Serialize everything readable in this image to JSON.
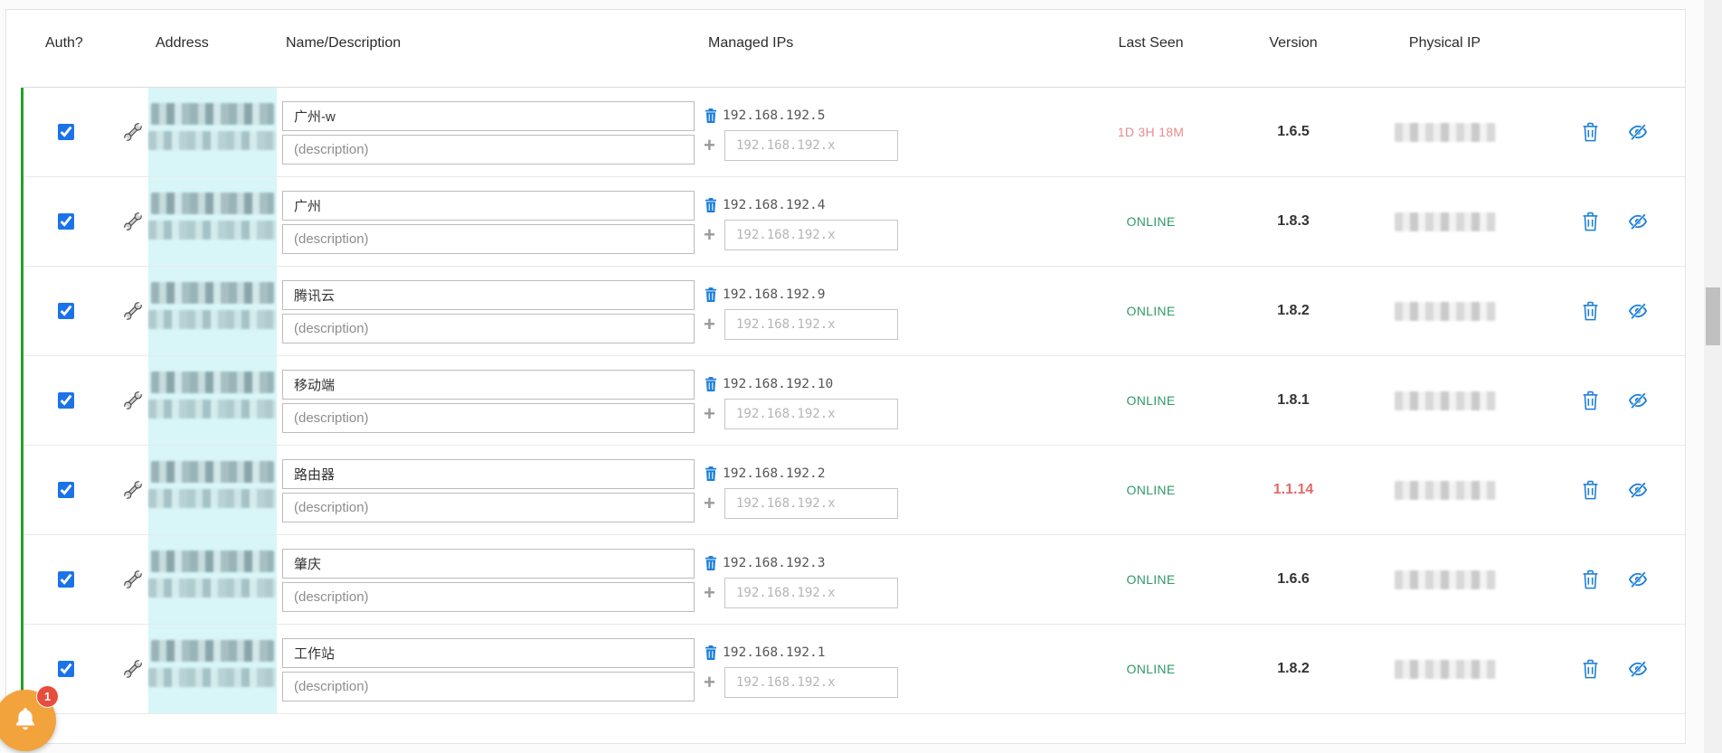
{
  "table": {
    "columns": [
      "Auth?",
      "Address",
      "Name/Description",
      "Managed IPs",
      "Last Seen",
      "Version",
      "Physical IP"
    ]
  },
  "inputs": {
    "description_placeholder": "(description)",
    "ip_placeholder": "192.168.192.x"
  },
  "members": [
    {
      "authorized": true,
      "name": "广州-w",
      "managed_ip": "192.168.192.5",
      "last_seen": "1D 3H 18M",
      "status": "offline",
      "version": "1.6.5",
      "version_alert": false
    },
    {
      "authorized": true,
      "name": "广州",
      "managed_ip": "192.168.192.4",
      "last_seen": "ONLINE",
      "status": "online",
      "version": "1.8.3",
      "version_alert": false
    },
    {
      "authorized": true,
      "name": "腾讯云",
      "managed_ip": "192.168.192.9",
      "last_seen": "ONLINE",
      "status": "online",
      "version": "1.8.2",
      "version_alert": false
    },
    {
      "authorized": true,
      "name": "移动端",
      "managed_ip": "192.168.192.10",
      "last_seen": "ONLINE",
      "status": "online",
      "version": "1.8.1",
      "version_alert": false
    },
    {
      "authorized": true,
      "name": "路由器",
      "managed_ip": "192.168.192.2",
      "last_seen": "ONLINE",
      "status": "online",
      "version": "1.1.14",
      "version_alert": true
    },
    {
      "authorized": true,
      "name": "肇庆",
      "managed_ip": "192.168.192.3",
      "last_seen": "ONLINE",
      "status": "online",
      "version": "1.6.6",
      "version_alert": false
    },
    {
      "authorized": true,
      "name": "工作站",
      "managed_ip": "192.168.192.1",
      "last_seen": "ONLINE",
      "status": "online",
      "version": "1.8.2",
      "version_alert": false
    }
  ],
  "notifications": {
    "badge_count": "1"
  },
  "colors": {
    "accent-blue": "#1a73e8",
    "icon-blue": "#1b7fd9",
    "authorized-green": "#23a127",
    "online-green": "#2f9a68",
    "alert-red": "#e06a6a",
    "lastseen-red": "#e58c8c",
    "address-highlight": "#d8f5f8",
    "bell-orange": "#f2a33c",
    "badge-red": "#e74c3c"
  }
}
